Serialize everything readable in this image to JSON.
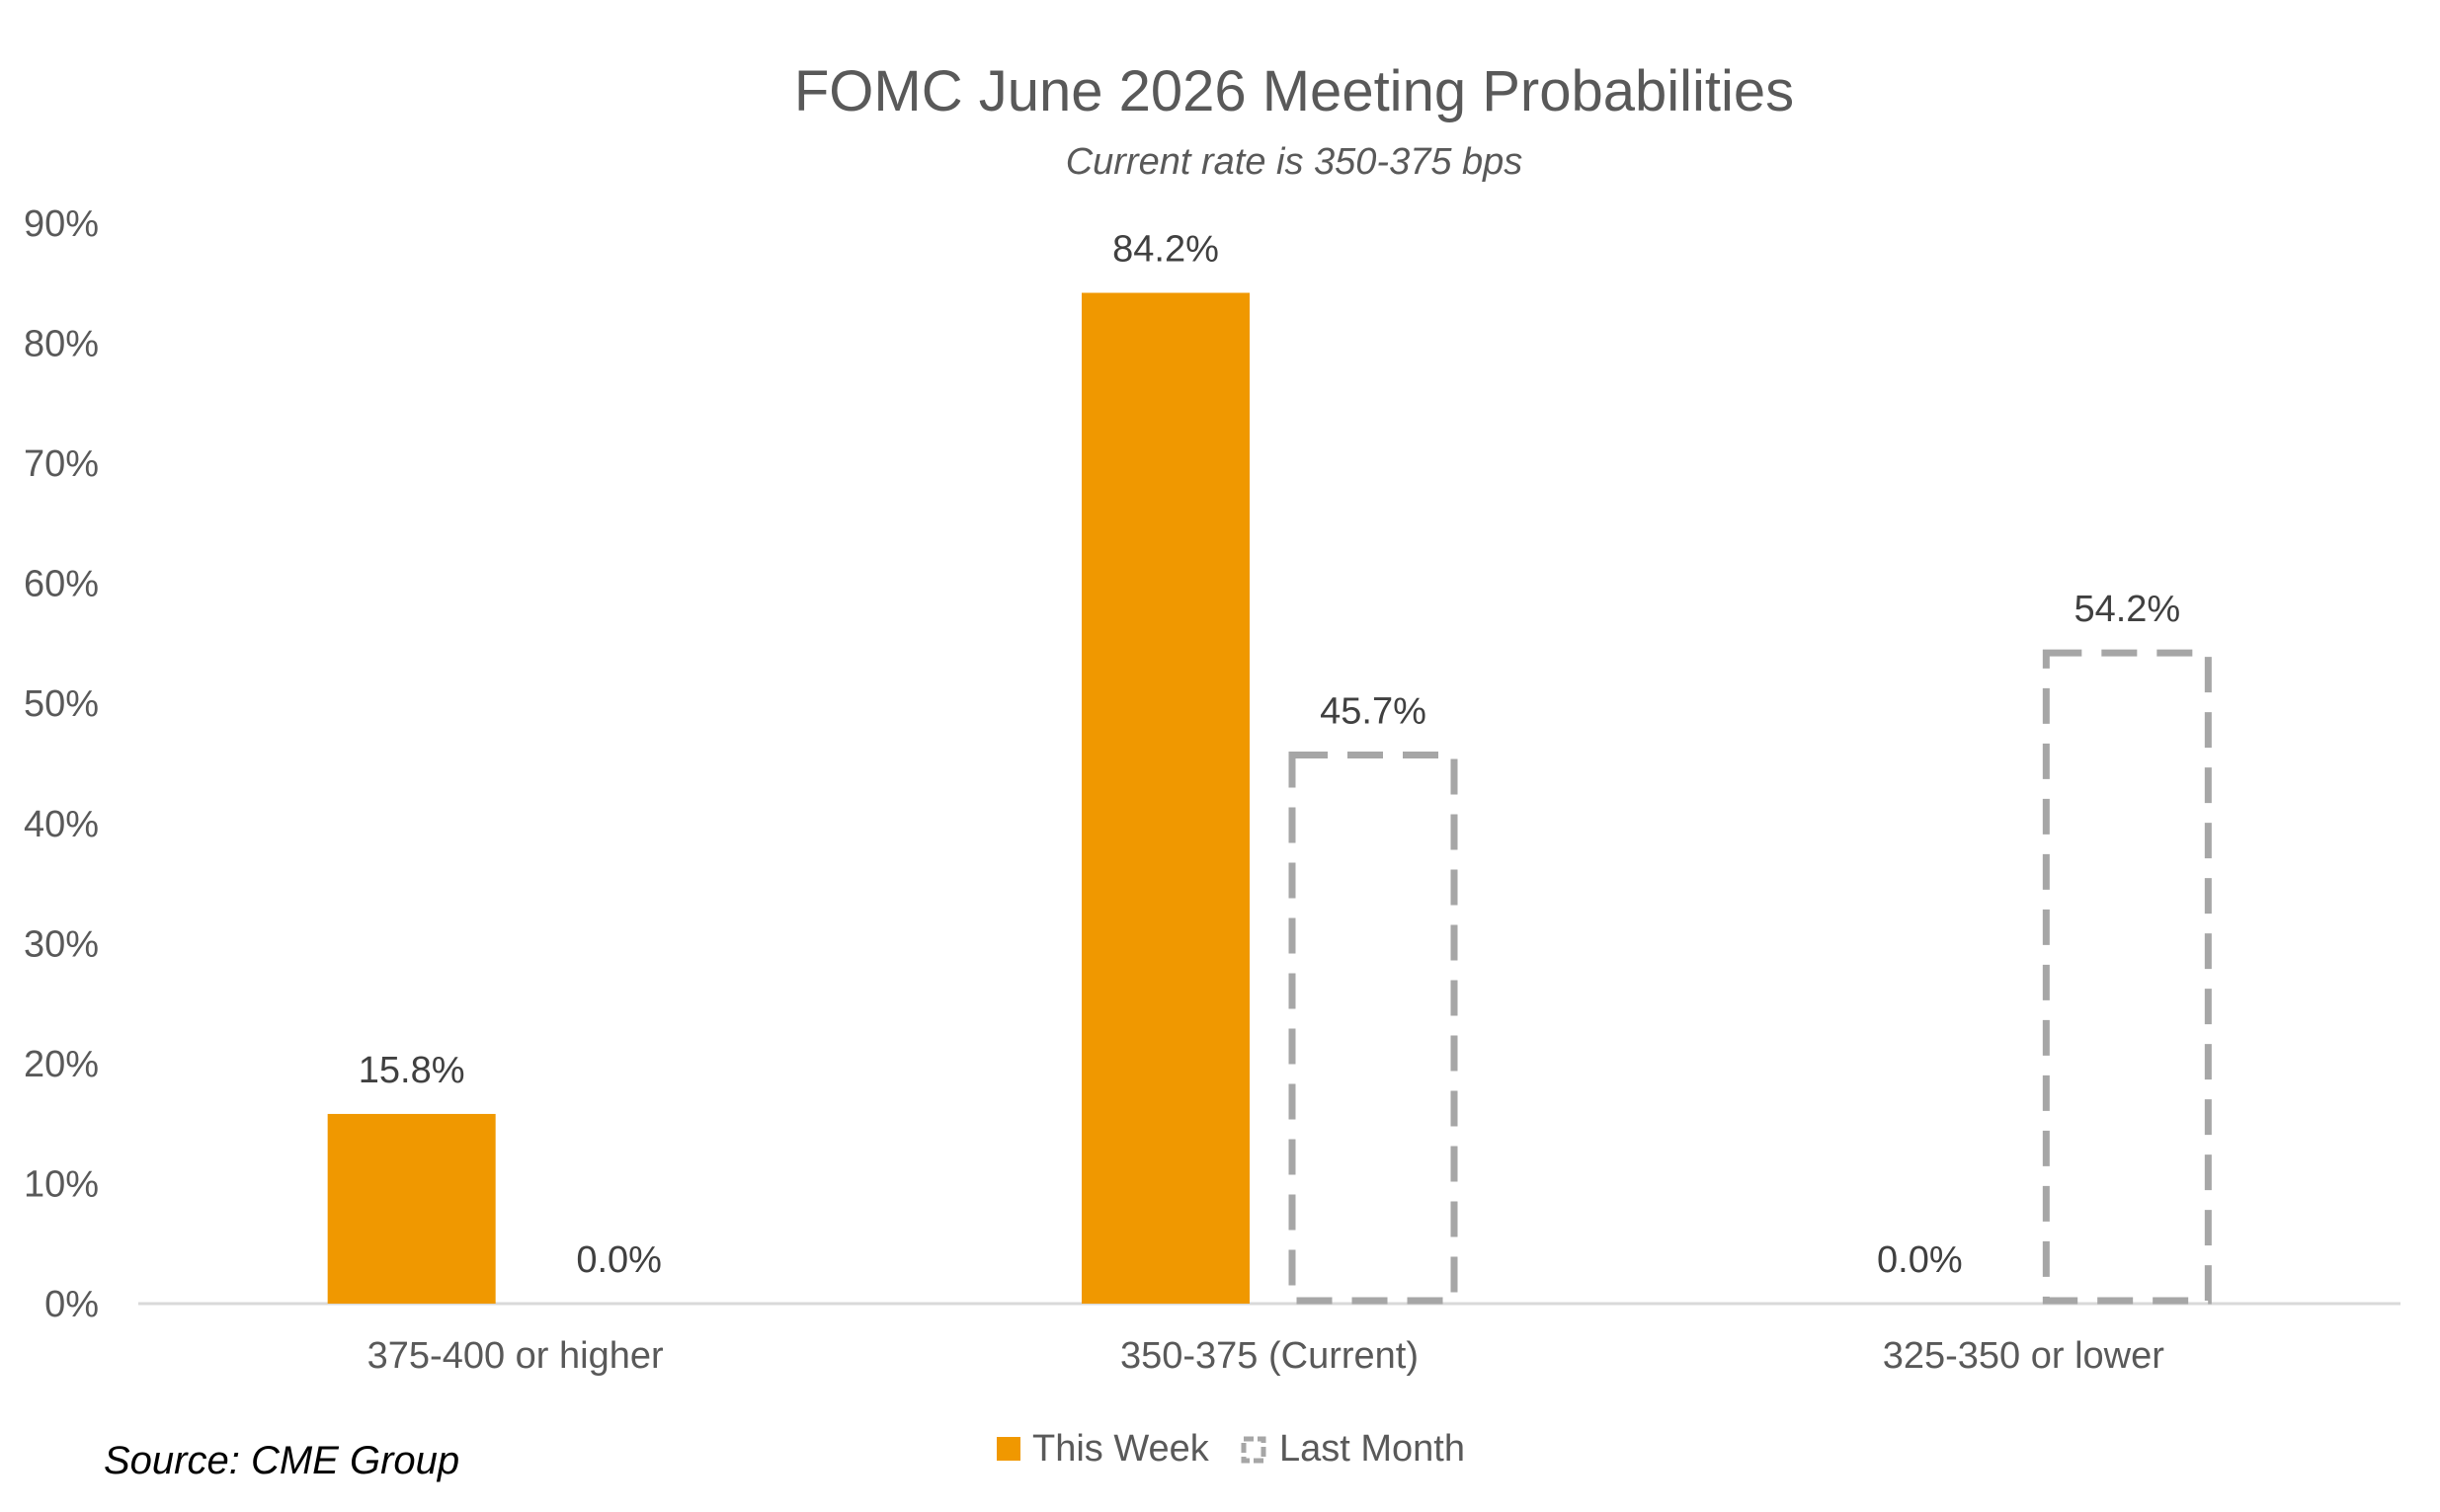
{
  "chart_data": {
    "type": "bar",
    "title": "FOMC June 2026 Meeting Probabilities",
    "subtitle": "Current rate is 350-375 bps",
    "source": "Source: CME Group",
    "categories": [
      "375-400 or higher",
      "350-375 (Current)",
      "325-350 or lower"
    ],
    "series": [
      {
        "name": "This Week",
        "values": [
          15.8,
          84.2,
          0.0
        ],
        "labels": [
          "15.8%",
          "84.2%",
          "0.0%"
        ],
        "color": "#F09800",
        "style": "solid"
      },
      {
        "name": "Last Month",
        "values": [
          0.0,
          45.7,
          54.2
        ],
        "labels": [
          "0.0%",
          "45.7%",
          "54.2%"
        ],
        "color": "#A6A6A6",
        "style": "dashed-outline"
      }
    ],
    "y_ticks": [
      "0%",
      "10%",
      "20%",
      "30%",
      "40%",
      "50%",
      "60%",
      "70%",
      "80%",
      "90%"
    ],
    "ylim": [
      0,
      90
    ],
    "grid": false,
    "legend_position": "bottom-center"
  }
}
